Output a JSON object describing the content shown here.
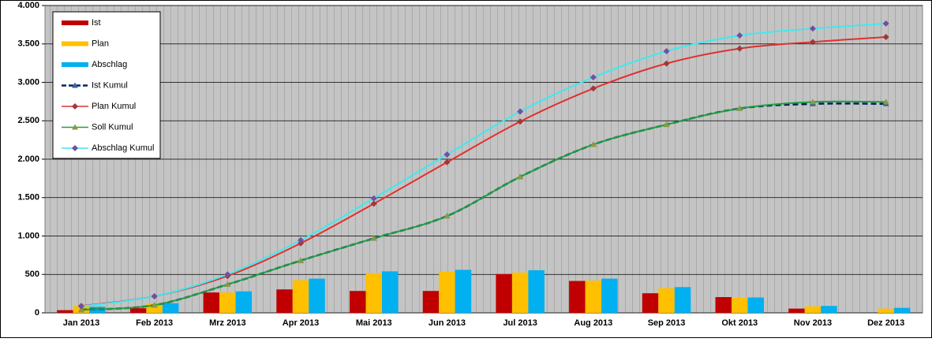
{
  "chart_data": {
    "type": "bar",
    "categories": [
      "Jan 2013",
      "Feb 2013",
      "Mrz 2013",
      "Apr 2013",
      "Mai 2013",
      "Jun 2013",
      "Jul 2013",
      "Aug 2013",
      "Sep 2013",
      "Okt 2013",
      "Nov 2013",
      "Dez 2013"
    ],
    "ylim": [
      0,
      4000
    ],
    "yticks": [
      0,
      500,
      {
        "value": 1000,
        "label": "1.000"
      },
      {
        "value": 1500,
        "label": "1.500"
      },
      {
        "value": 2000,
        "label": "2.000"
      },
      {
        "value": 2500,
        "label": "2.500"
      },
      {
        "value": 3000,
        "label": "3.000"
      },
      {
        "value": 3500,
        "label": "3.500"
      },
      {
        "value": 4000,
        "label": "4.000"
      }
    ],
    "grid": true,
    "legend": "upper left",
    "series": [
      {
        "name": "Ist",
        "type": "bar",
        "color": "#c00000",
        "values": [
          35,
          60,
          265,
          305,
          285,
          285,
          505,
          415,
          255,
          205,
          55,
          null
        ]
      },
      {
        "name": "Plan",
        "type": "bar",
        "color": "#ffc000",
        "values": [
          90,
          120,
          265,
          425,
          515,
          535,
          525,
          420,
          320,
          195,
          85,
          55
        ]
      },
      {
        "name": "Abschlag",
        "type": "bar",
        "color": "#00b0f0",
        "values": [
          80,
          125,
          280,
          445,
          540,
          560,
          555,
          445,
          335,
          200,
          90,
          65
        ]
      },
      {
        "name": "Ist Kumul",
        "type": "line",
        "color": "#002060",
        "dashed": true,
        "marker": "triangle",
        "marker_color": "#4060a0",
        "values": [
          40,
          100,
          370,
          680,
          970,
          1260,
          1770,
          2190,
          2450,
          2660,
          2720,
          2720
        ]
      },
      {
        "name": "Plan Kumul",
        "type": "line",
        "color": "#e03030",
        "marker": "diamond",
        "marker_color": "#a03838",
        "values": [
          90,
          215,
          480,
          905,
          1420,
          1960,
          2490,
          2920,
          3245,
          3440,
          3525,
          3590
        ]
      },
      {
        "name": "Soll Kumul",
        "type": "line",
        "color": "#20a040",
        "marker": "triangle",
        "marker_color": "#8a9a40",
        "values": [
          40,
          100,
          370,
          680,
          970,
          1260,
          1770,
          2190,
          2450,
          2660,
          2745,
          2745
        ]
      },
      {
        "name": "Abschlag Kumul",
        "type": "line",
        "color": "#40e8f0",
        "marker": "diamond",
        "marker_color": "#7050a0",
        "values": [
          85,
          215,
          500,
          945,
          1490,
          2060,
          2620,
          3065,
          3405,
          3610,
          3700,
          3765
        ]
      }
    ]
  }
}
